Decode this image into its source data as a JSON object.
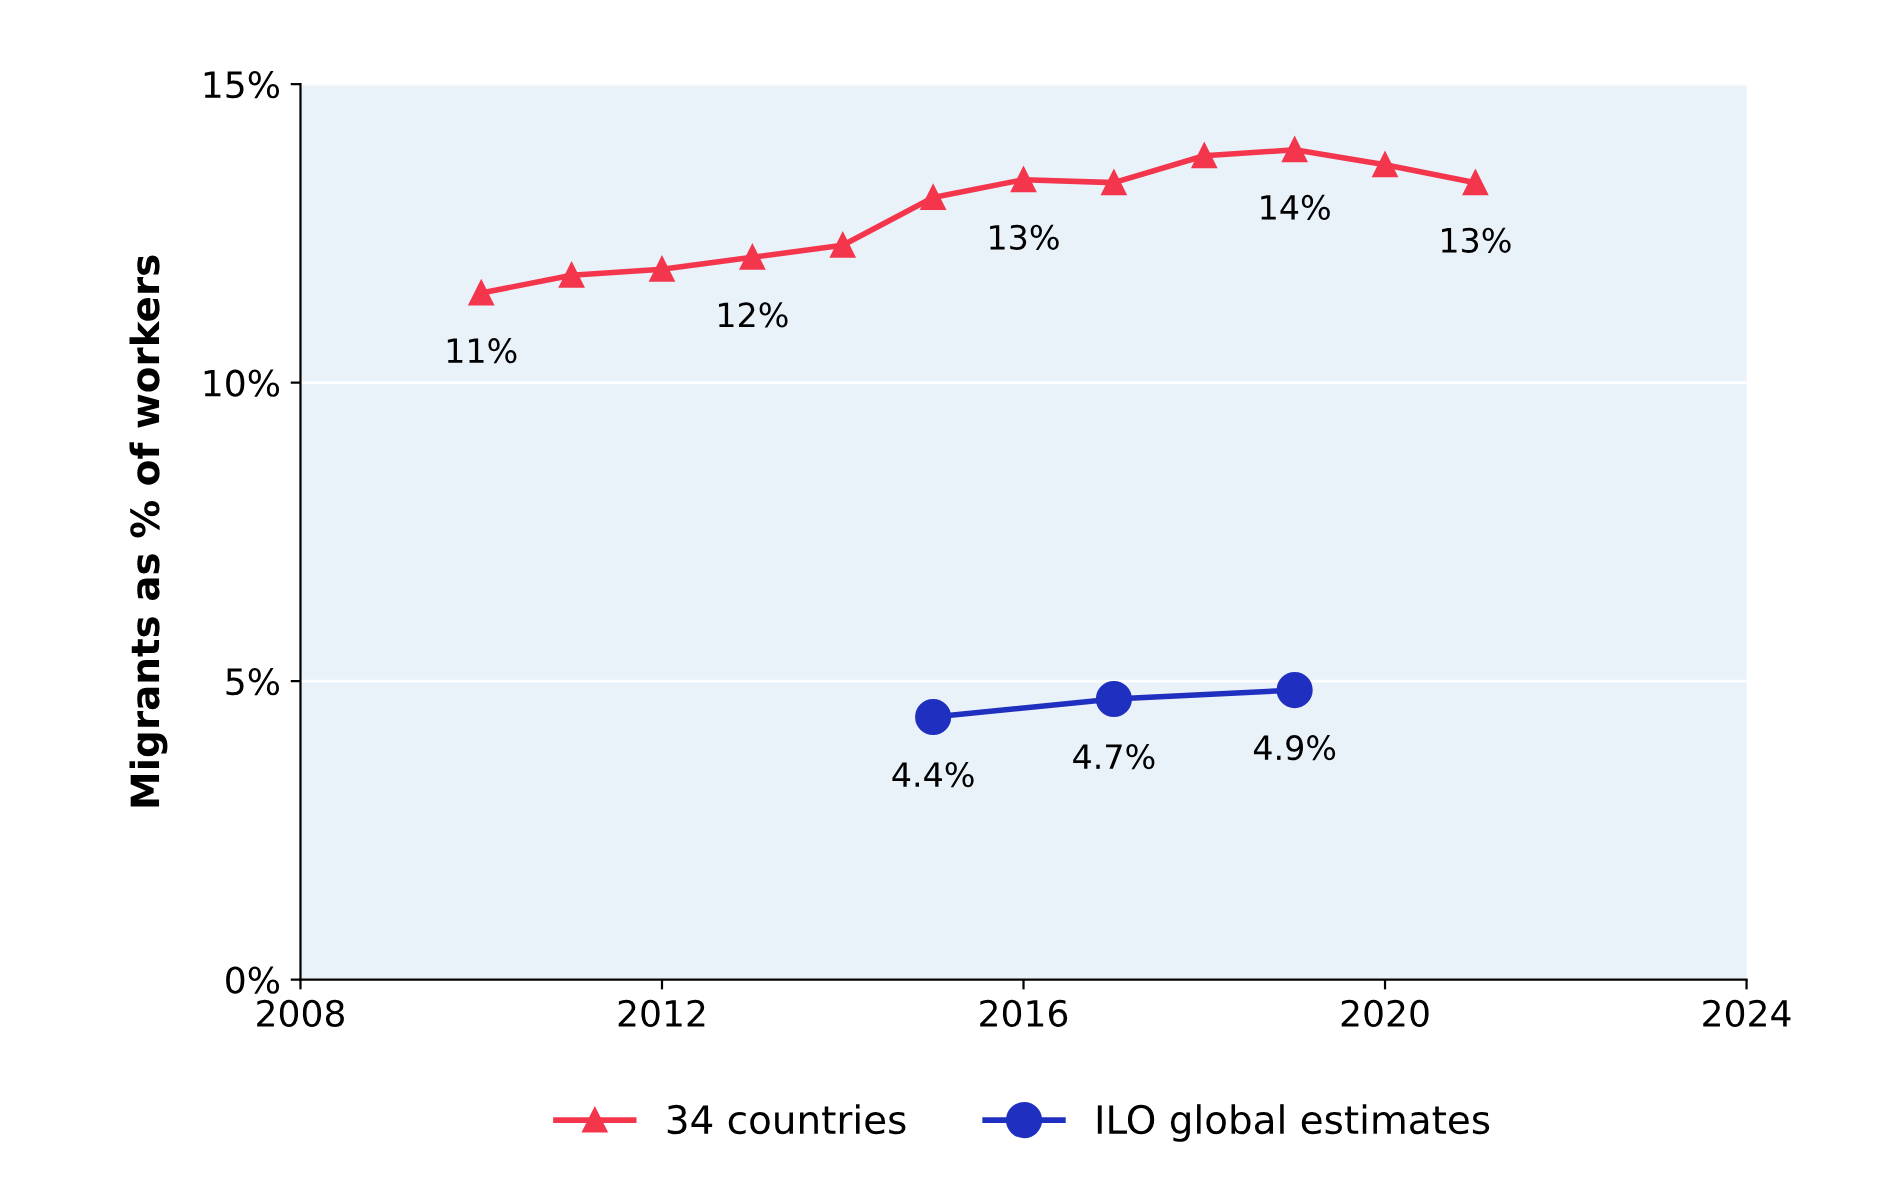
{
  "chart_data": {
    "type": "line",
    "ylabel": "Migrants as % of workers",
    "series": [
      {
        "name": "34 countries",
        "color": "#f4364c",
        "marker": "triangle",
        "x": [
          2010,
          2011,
          2012,
          2013,
          2014,
          2015,
          2016,
          2017,
          2018,
          2019,
          2020,
          2021
        ],
        "values": [
          11.5,
          11.8,
          11.9,
          12.1,
          12.3,
          13.1,
          13.4,
          13.35,
          13.8,
          13.9,
          13.65,
          13.35
        ],
        "value_labels": [
          "11%",
          null,
          null,
          "12%",
          null,
          null,
          "13%",
          null,
          null,
          "14%",
          null,
          "13%"
        ]
      },
      {
        "name": "ILO global estimates",
        "color": "#1f2fbf",
        "marker": "circle",
        "x": [
          2015,
          2017,
          2019
        ],
        "values": [
          4.4,
          4.7,
          4.85
        ],
        "value_labels": [
          "4.4%",
          "4.7%",
          "4.9%"
        ]
      }
    ],
    "xlim": [
      2008,
      2024
    ],
    "xticks": [
      2008,
      2012,
      2016,
      2020,
      2024
    ],
    "ylim": [
      0,
      15
    ],
    "yticks": [
      {
        "value": 0,
        "label": "0%"
      },
      {
        "value": 5,
        "label": "5%"
      },
      {
        "value": 10,
        "label": "10%"
      },
      {
        "value": 15,
        "label": "15%"
      }
    ],
    "grid": "y",
    "legend": "bottom",
    "line_style": "solid"
  }
}
